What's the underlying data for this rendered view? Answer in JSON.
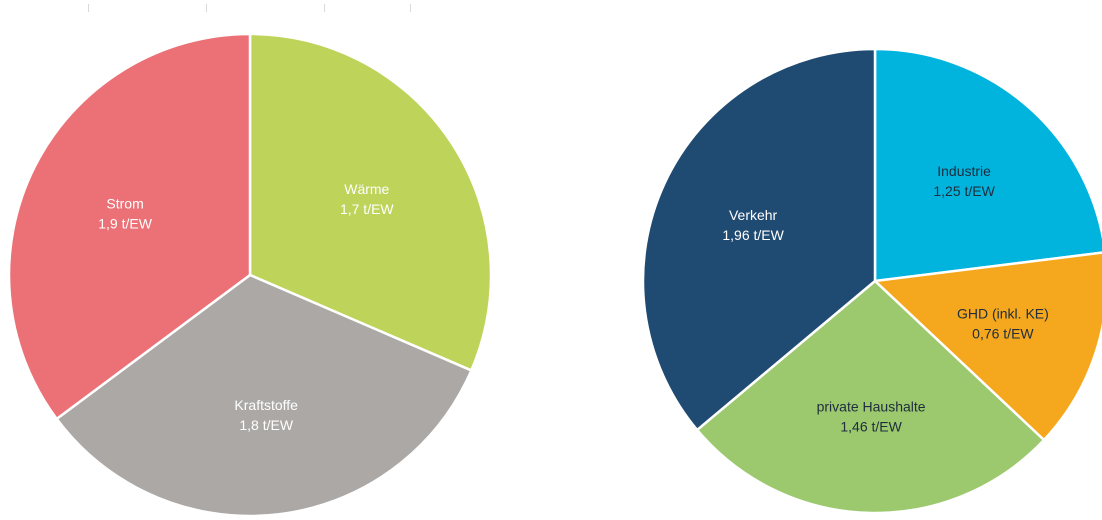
{
  "chart_data": [
    {
      "type": "pie",
      "title": "",
      "slices": [
        {
          "label": "Wärme",
          "value": 1.7,
          "value_label": "1,7 t/EW",
          "color": "#BDD35A",
          "label_color": "#ffffff"
        },
        {
          "label": "Kraftstoffe",
          "value": 1.8,
          "value_label": "1,8 t/EW",
          "color": "#ABA8A6",
          "label_color": "#ffffff"
        },
        {
          "label": "Strom",
          "value": 1.9,
          "value_label": "1,9 t/EW",
          "color": "#EB7177",
          "label_color": "#ffffff"
        }
      ]
    },
    {
      "type": "pie",
      "title": "",
      "slices": [
        {
          "label": "Industrie",
          "value": 1.25,
          "value_label": "1,25 t/EW",
          "color": "#00B4DE",
          "label_color": "#1f2d3d"
        },
        {
          "label": "GHD (inkl. KE)",
          "value": 0.76,
          "value_label": "0,76 t/EW",
          "color": "#F5A81E",
          "label_color": "#1f2d3d"
        },
        {
          "label": "private Haushalte",
          "value": 1.46,
          "value_label": "1,46 t/EW",
          "color": "#9CC86E",
          "label_color": "#1f2d3d"
        },
        {
          "label": "Verkehr",
          "value": 1.96,
          "value_label": "1,96 t/EW",
          "color": "#1F4A72",
          "label_color": "#ffffff"
        }
      ]
    }
  ]
}
